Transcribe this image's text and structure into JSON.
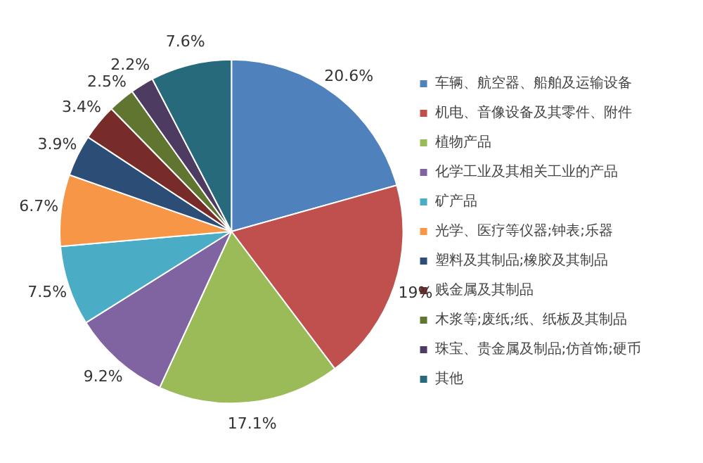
{
  "chart_data": {
    "type": "pie",
    "categories": [
      "车辆、航空器、船舶及运输设备",
      "机电、音像设备及其零件、附件",
      "植物产品",
      "化学工业及其相关工业的产品",
      "矿产品",
      "光学、医疗等仪器;钟表;乐器",
      "塑料及其制品;橡胶及其制品",
      "贱金属及其制品",
      "木浆等;废纸;纸、纸板及其制品",
      "珠宝、贵金属及制品;仿首饰;硬币",
      "其他"
    ],
    "values": [
      20.6,
      19,
      17.1,
      9.2,
      7.5,
      6.7,
      3.9,
      3.4,
      2.5,
      2.2,
      7.6
    ],
    "value_labels": [
      "20.6%",
      "19%",
      "17.1%",
      "9.2%",
      "7.5%",
      "6.7%",
      "3.9%",
      "3.4%",
      "2.5%",
      "2.2%",
      "7.6%"
    ],
    "colors": [
      "#4f81bd",
      "#c0504d",
      "#9bbb59",
      "#8064a2",
      "#4bacc6",
      "#f79646",
      "#2c4d75",
      "#772c2a",
      "#5f7530",
      "#4d3b62",
      "#276a7c"
    ],
    "legend": "right"
  }
}
